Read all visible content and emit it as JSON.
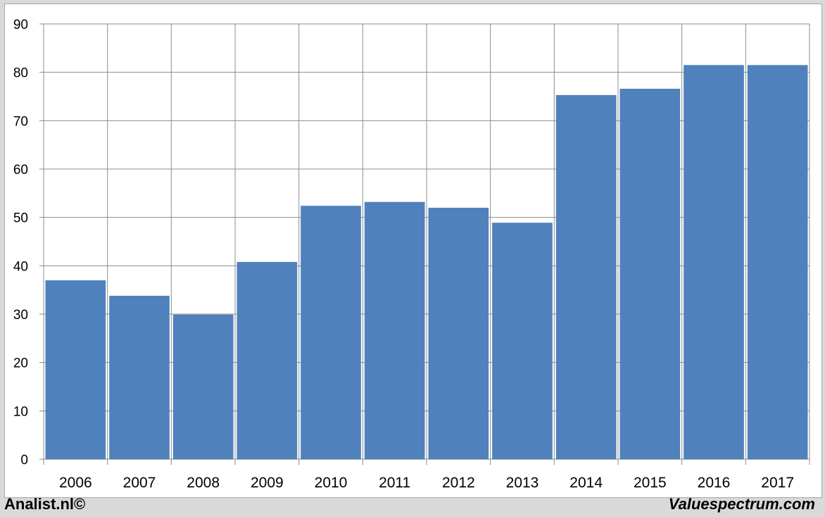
{
  "chart_data": {
    "type": "bar",
    "categories": [
      "2006",
      "2007",
      "2008",
      "2009",
      "2010",
      "2011",
      "2012",
      "2013",
      "2014",
      "2015",
      "2016",
      "2017"
    ],
    "values": [
      37.0,
      33.8,
      29.9,
      40.8,
      52.4,
      53.2,
      52.0,
      48.9,
      75.3,
      76.6,
      81.5,
      81.5
    ],
    "ylim": [
      0,
      90
    ],
    "yticks": [
      0,
      10,
      20,
      30,
      40,
      50,
      60,
      70,
      80,
      90
    ],
    "grid": true,
    "bar_color": "#4f81bd",
    "title": "",
    "xlabel": "",
    "ylabel": ""
  },
  "footer": {
    "left": "Analist.nl©",
    "right": "Valuespectrum.com"
  }
}
